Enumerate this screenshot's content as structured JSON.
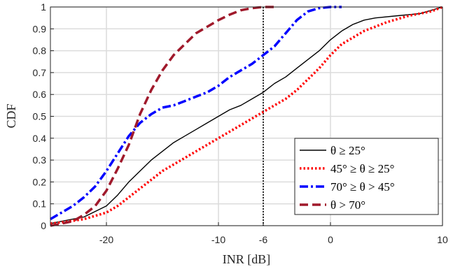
{
  "chart_data": {
    "type": "line",
    "xlabel": "INR [dB]",
    "ylabel": "CDF",
    "xlim": [
      -25,
      10
    ],
    "ylim": [
      0,
      1
    ],
    "xticks": [
      -20,
      -10,
      -6,
      0,
      10
    ],
    "xtick_labels": [
      "-20",
      "-10",
      "-6",
      "0",
      "10"
    ],
    "yticks": [
      0,
      0.1,
      0.2,
      0.3,
      0.4,
      0.5,
      0.6,
      0.7,
      0.8,
      0.9,
      1
    ],
    "ytick_labels": [
      "0",
      "0.1",
      "0.2",
      "0.3",
      "0.4",
      "0.5",
      "0.6",
      "0.7",
      "0.8",
      "0.9",
      "1"
    ],
    "grid": true,
    "vertical_line_x": -6,
    "legend_position": "bottom-right",
    "series": [
      {
        "name": "θ ≥ 25°",
        "color": "#000000",
        "style": "solid",
        "points": [
          [
            -25,
            0.01
          ],
          [
            -24,
            0.02
          ],
          [
            -22,
            0.04
          ],
          [
            -20,
            0.09
          ],
          [
            -19,
            0.14
          ],
          [
            -18,
            0.2
          ],
          [
            -17,
            0.25
          ],
          [
            -16,
            0.3
          ],
          [
            -15,
            0.34
          ],
          [
            -14,
            0.38
          ],
          [
            -13,
            0.41
          ],
          [
            -12,
            0.44
          ],
          [
            -11,
            0.47
          ],
          [
            -10,
            0.5
          ],
          [
            -9,
            0.53
          ],
          [
            -8,
            0.55
          ],
          [
            -7,
            0.58
          ],
          [
            -6,
            0.61
          ],
          [
            -5,
            0.65
          ],
          [
            -4,
            0.68
          ],
          [
            -3,
            0.72
          ],
          [
            -2,
            0.76
          ],
          [
            -1,
            0.8
          ],
          [
            0,
            0.85
          ],
          [
            1,
            0.89
          ],
          [
            2,
            0.92
          ],
          [
            3,
            0.94
          ],
          [
            4,
            0.95
          ],
          [
            6,
            0.96
          ],
          [
            8,
            0.97
          ],
          [
            10,
            1.0
          ]
        ]
      },
      {
        "name": "45° ≥ θ ≥ 25°",
        "color": "#ff0000",
        "style": "dotted",
        "points": [
          [
            -25,
            0.01
          ],
          [
            -24,
            0.015
          ],
          [
            -22,
            0.03
          ],
          [
            -20,
            0.06
          ],
          [
            -19,
            0.09
          ],
          [
            -18,
            0.13
          ],
          [
            -17,
            0.17
          ],
          [
            -16,
            0.21
          ],
          [
            -15,
            0.25
          ],
          [
            -14,
            0.28
          ],
          [
            -13,
            0.31
          ],
          [
            -12,
            0.34
          ],
          [
            -11,
            0.37
          ],
          [
            -10,
            0.4
          ],
          [
            -9,
            0.43
          ],
          [
            -8,
            0.46
          ],
          [
            -7,
            0.49
          ],
          [
            -6,
            0.52
          ],
          [
            -5,
            0.55
          ],
          [
            -4,
            0.58
          ],
          [
            -3,
            0.62
          ],
          [
            -2,
            0.67
          ],
          [
            -1,
            0.72
          ],
          [
            0,
            0.78
          ],
          [
            1,
            0.83
          ],
          [
            2,
            0.86
          ],
          [
            3,
            0.89
          ],
          [
            4,
            0.91
          ],
          [
            5,
            0.93
          ],
          [
            7,
            0.96
          ],
          [
            9,
            0.98
          ],
          [
            10,
            1.0
          ]
        ]
      },
      {
        "name": "70° ≥ θ > 45°",
        "color": "#0000ff",
        "style": "dashdot",
        "points": [
          [
            -25,
            0.03
          ],
          [
            -24,
            0.06
          ],
          [
            -23,
            0.09
          ],
          [
            -22,
            0.13
          ],
          [
            -21,
            0.18
          ],
          [
            -20,
            0.25
          ],
          [
            -19,
            0.33
          ],
          [
            -18,
            0.41
          ],
          [
            -17,
            0.47
          ],
          [
            -16,
            0.51
          ],
          [
            -15,
            0.54
          ],
          [
            -14,
            0.55
          ],
          [
            -13,
            0.57
          ],
          [
            -12,
            0.59
          ],
          [
            -11,
            0.61
          ],
          [
            -10,
            0.64
          ],
          [
            -9,
            0.68
          ],
          [
            -8,
            0.71
          ],
          [
            -7,
            0.74
          ],
          [
            -6,
            0.78
          ],
          [
            -5,
            0.82
          ],
          [
            -4,
            0.88
          ],
          [
            -3,
            0.94
          ],
          [
            -2,
            0.98
          ],
          [
            -1,
            0.995
          ],
          [
            0,
            1.0
          ],
          [
            1,
            1.0
          ]
        ]
      },
      {
        "name": "θ > 70°",
        "color": "#a0192b",
        "style": "dashed",
        "points": [
          [
            -25,
            0.0
          ],
          [
            -24,
            0.01
          ],
          [
            -23,
            0.02
          ],
          [
            -22,
            0.05
          ],
          [
            -21,
            0.09
          ],
          [
            -20,
            0.16
          ],
          [
            -19,
            0.26
          ],
          [
            -18,
            0.37
          ],
          [
            -17,
            0.51
          ],
          [
            -16,
            0.62
          ],
          [
            -15,
            0.71
          ],
          [
            -14,
            0.78
          ],
          [
            -13,
            0.83
          ],
          [
            -12,
            0.88
          ],
          [
            -11,
            0.91
          ],
          [
            -10,
            0.94
          ],
          [
            -9,
            0.965
          ],
          [
            -8,
            0.985
          ],
          [
            -7,
            0.995
          ],
          [
            -6,
            1.0
          ],
          [
            -5,
            1.0
          ]
        ]
      }
    ]
  }
}
